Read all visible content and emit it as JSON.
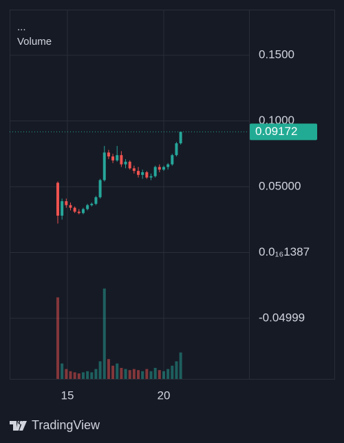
{
  "chart_data": {
    "type": "candlestick",
    "legend_title": "...",
    "x": [
      14.5,
      14.72,
      14.94,
      15.16,
      15.38,
      15.6,
      15.82,
      16.04,
      16.26,
      16.48,
      16.7,
      16.92,
      17.14,
      17.36,
      17.58,
      17.8,
      18.02,
      18.24,
      18.46,
      18.68,
      18.9,
      19.12,
      19.34,
      19.56,
      19.78,
      20.0,
      20.22,
      20.44,
      20.66,
      20.88
    ],
    "open": [
      0.053,
      0.028,
      0.039,
      0.036,
      0.034,
      0.031,
      0.03,
      0.033,
      0.036,
      0.037,
      0.042,
      0.055,
      0.076,
      0.073,
      0.07,
      0.074,
      0.067,
      0.069,
      0.064,
      0.062,
      0.059,
      0.061,
      0.057,
      0.058,
      0.065,
      0.063,
      0.065,
      0.067,
      0.074,
      0.083
    ],
    "high": [
      0.054,
      0.041,
      0.041,
      0.038,
      0.035,
      0.033,
      0.034,
      0.037,
      0.038,
      0.043,
      0.056,
      0.081,
      0.078,
      0.075,
      0.081,
      0.077,
      0.071,
      0.07,
      0.066,
      0.065,
      0.063,
      0.062,
      0.06,
      0.066,
      0.067,
      0.066,
      0.068,
      0.075,
      0.084,
      0.09172
    ],
    "low": [
      0.022,
      0.025,
      0.034,
      0.032,
      0.03,
      0.029,
      0.029,
      0.032,
      0.035,
      0.036,
      0.041,
      0.054,
      0.071,
      0.068,
      0.069,
      0.065,
      0.064,
      0.063,
      0.06,
      0.057,
      0.056,
      0.056,
      0.055,
      0.057,
      0.061,
      0.062,
      0.063,
      0.066,
      0.073,
      0.082
    ],
    "close": [
      0.028,
      0.039,
      0.036,
      0.034,
      0.031,
      0.03,
      0.033,
      0.036,
      0.037,
      0.042,
      0.055,
      0.076,
      0.073,
      0.07,
      0.074,
      0.067,
      0.069,
      0.064,
      0.062,
      0.059,
      0.061,
      0.057,
      0.058,
      0.065,
      0.063,
      0.065,
      0.067,
      0.074,
      0.083,
      0.09172
    ],
    "up_color": "#26a69a",
    "down_color": "#ef5350",
    "volume": {
      "name": "Volume",
      "values": [
        74,
        14,
        9,
        7,
        6,
        5,
        6,
        7,
        6,
        9,
        16,
        82,
        18,
        12,
        14,
        10,
        9,
        8,
        9,
        8,
        7,
        9,
        7,
        10,
        8,
        7,
        9,
        12,
        16,
        24
      ],
      "ylim": [
        0,
        100
      ]
    },
    "last_price": 0.09172,
    "last_price_color": "#22ab94",
    "xlim": [
      12,
      24.43
    ],
    "xticks": [
      15,
      20
    ],
    "ylim": [
      -0.0961,
      0.1846
    ],
    "yticks": [
      {
        "value": 0.15,
        "label": "0.1500"
      },
      {
        "value": 0.1,
        "label": "0.1000"
      },
      {
        "value": 0.05,
        "label": "0.05000"
      },
      {
        "value": 1.387e-17,
        "label": "0.0₁₆1387"
      },
      -0.04999
    ],
    "grid": true
  },
  "branding": "TradingView"
}
